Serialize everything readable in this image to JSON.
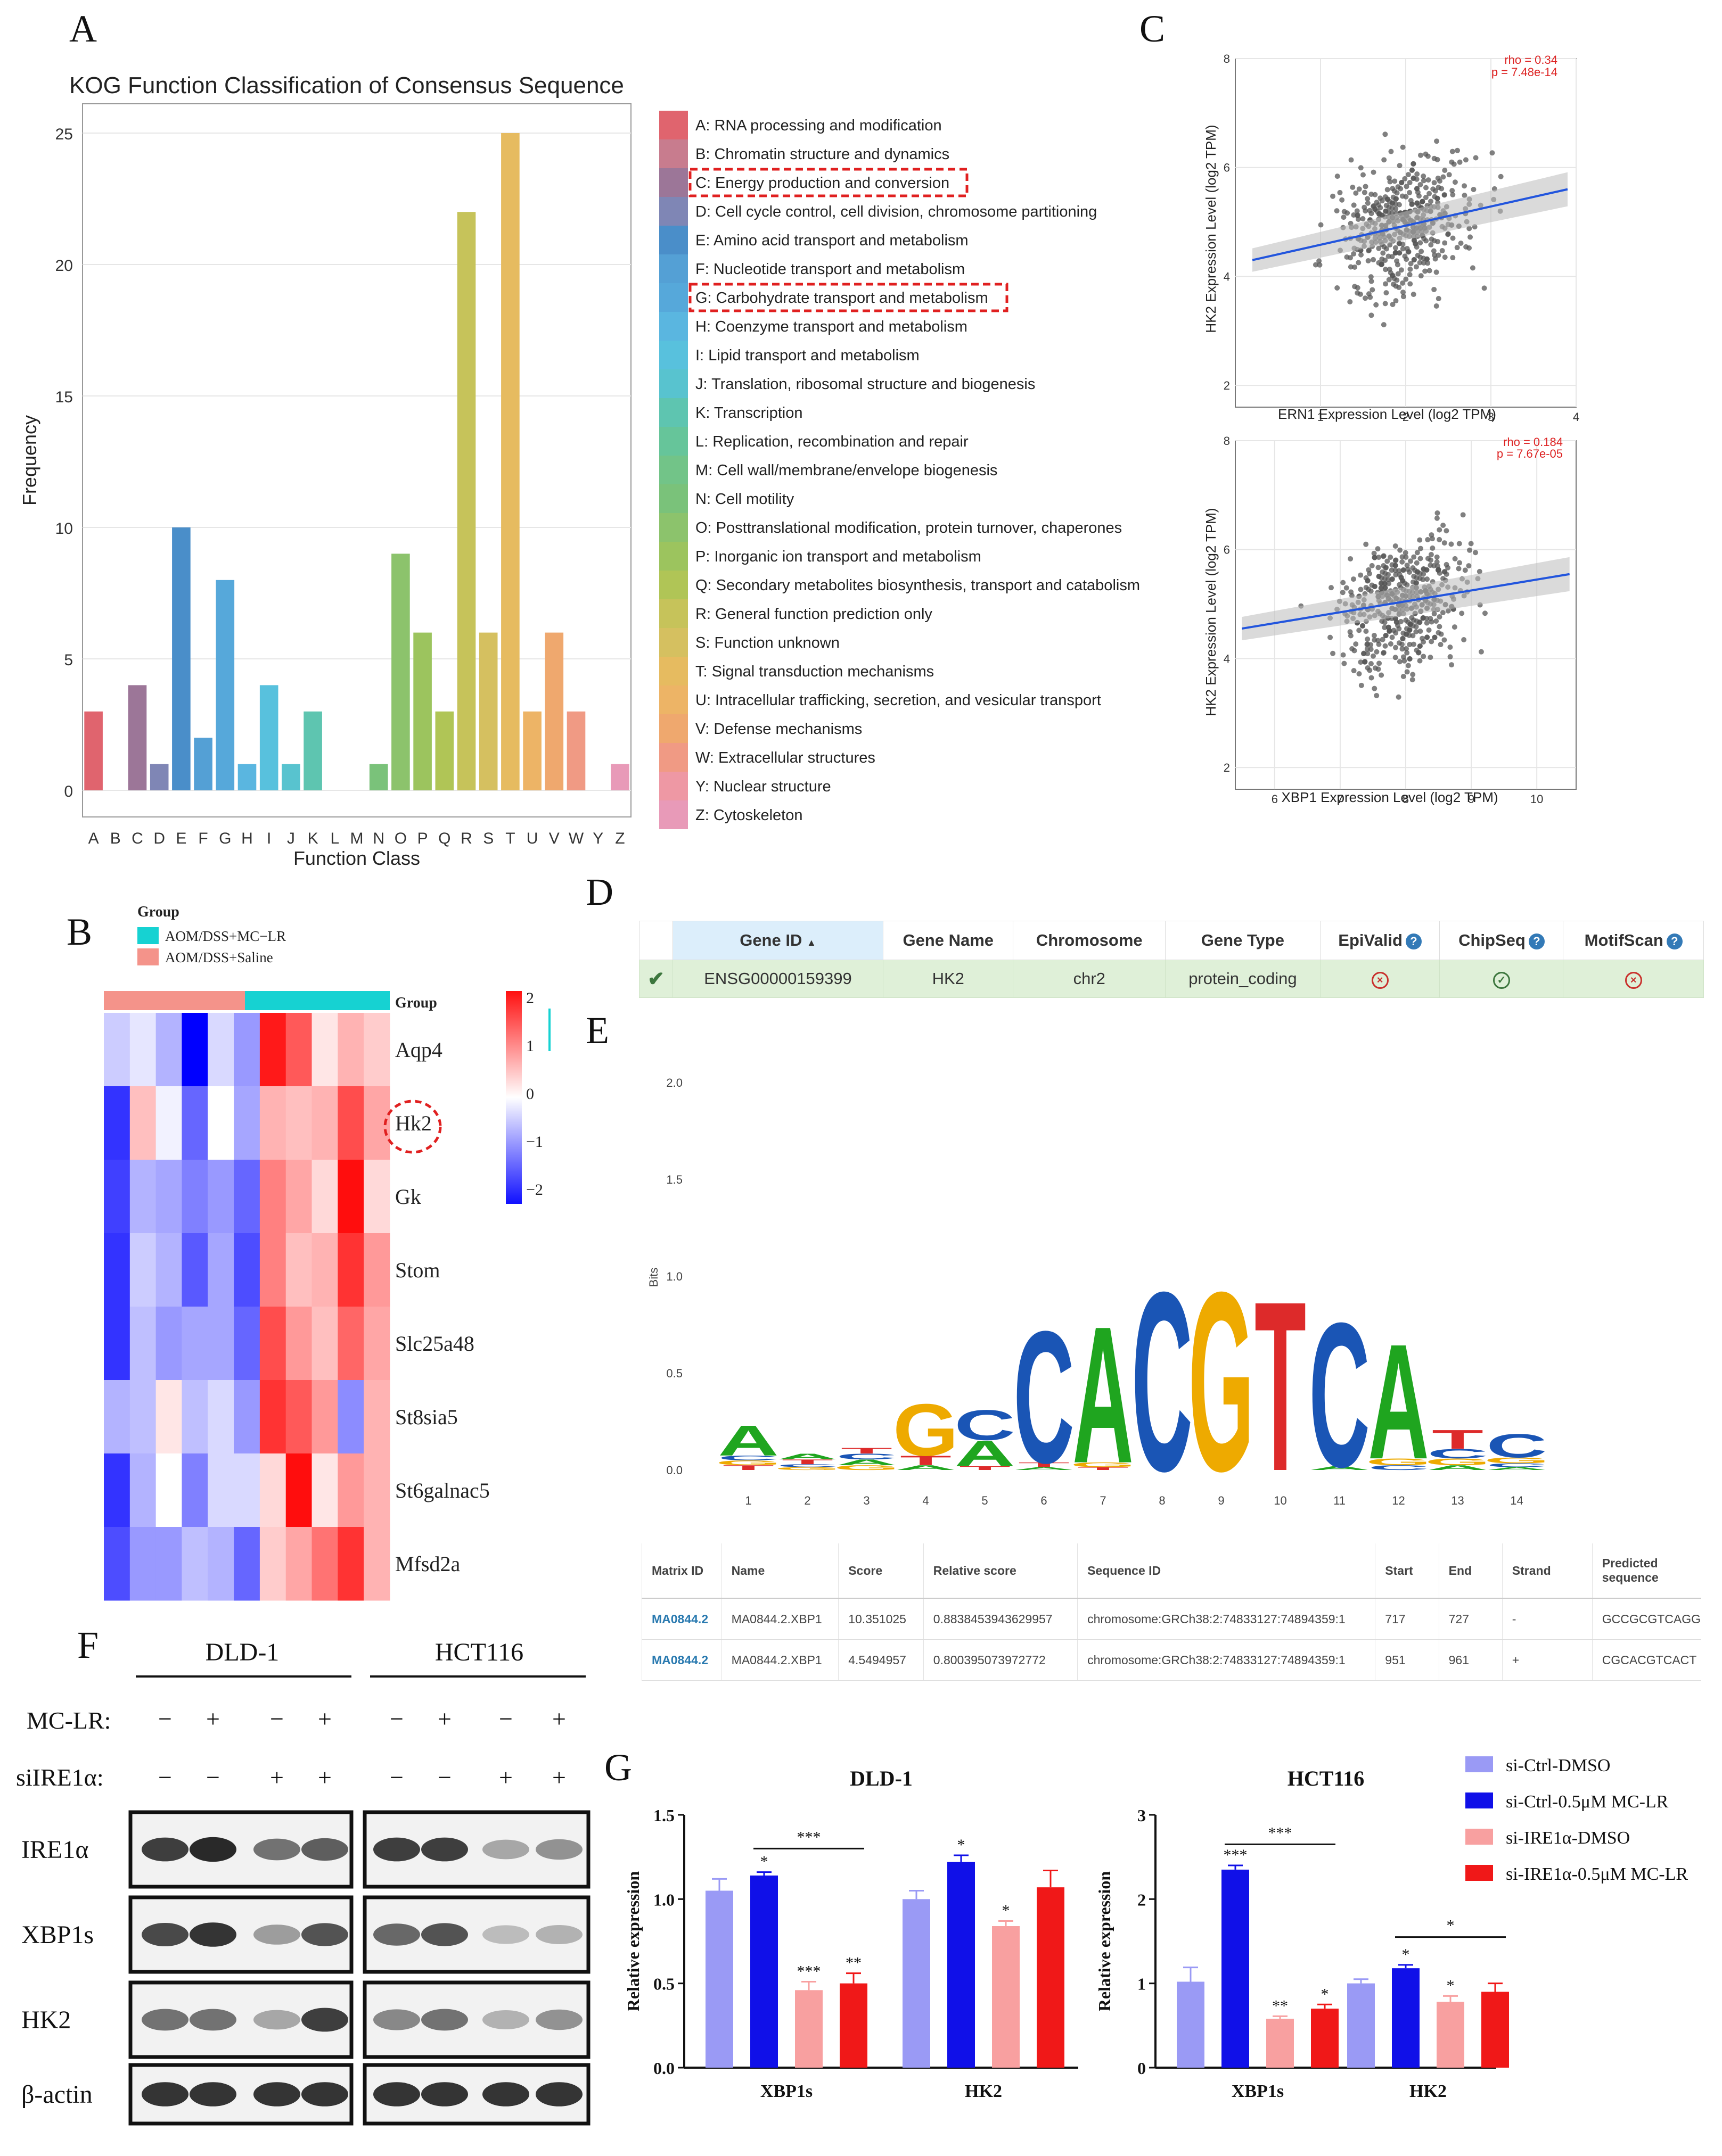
{
  "panels": {
    "A": "A",
    "B": "B",
    "C": "C",
    "D": "D",
    "E": "E",
    "F": "F",
    "G": "G"
  },
  "colors": {
    "red": "#e41a1c",
    "blue": "#1010e8",
    "light_blue": "#9a9af5",
    "pink": "#f8a0a0"
  },
  "panel_a": {
    "legend": [
      {
        "text": "A: RNA processing and modification",
        "color": "#e0646e"
      },
      {
        "text": "B: Chromatin structure and dynamics",
        "color": "#c87c8e"
      },
      {
        "text": "C: Energy production and conversion",
        "color": "#9c7698",
        "highlight": true
      },
      {
        "text": "D: Cell cycle control, cell division, chromosome partitioning",
        "color": "#7f86b5"
      },
      {
        "text": "E: Amino acid transport and metabolism",
        "color": "#4a8ec9"
      },
      {
        "text": "F: Nucleotide transport and metabolism",
        "color": "#54a0d5"
      },
      {
        "text": "G: Carbohydrate transport and metabolism",
        "color": "#56a8da",
        "highlight": true
      },
      {
        "text": "H: Coenzyme transport and metabolism",
        "color": "#5ab6e0"
      },
      {
        "text": "I: Lipid transport and metabolism",
        "color": "#58c1dd"
      },
      {
        "text": "J: Translation, ribosomal structure and biogenesis",
        "color": "#58c3cf"
      },
      {
        "text": "K: Transcription",
        "color": "#5ec5b0"
      },
      {
        "text": "L: Replication, recombination and repair",
        "color": "#66c59a"
      },
      {
        "text": "M: Cell wall/membrane/envelope biogenesis",
        "color": "#72c488"
      },
      {
        "text": "N: Cell motility",
        "color": "#7ac27a"
      },
      {
        "text": "O: Posttranslational modification, protein turnover, chaperones",
        "color": "#8cc36c"
      },
      {
        "text": "P: Inorganic ion transport and metabolism",
        "color": "#9cc45e"
      },
      {
        "text": "Q: Secondary metabolites biosynthesis, transport and catabolism",
        "color": "#b0c556"
      },
      {
        "text": "R: General function prediction only",
        "color": "#c6c35a"
      },
      {
        "text": "S: Function unknown",
        "color": "#d5c060"
      },
      {
        "text": "T: Signal transduction mechanisms",
        "color": "#e6bb60"
      },
      {
        "text": "U: Intracellular trafficking, secretion, and vesicular transport",
        "color": "#edb466"
      },
      {
        "text": "V: Defense mechanisms",
        "color": "#efa86e"
      },
      {
        "text": "W: Extracellular structures",
        "color": "#f09a84"
      },
      {
        "text": "Y: Nuclear structure",
        "color": "#ee98a4"
      },
      {
        "text": "Z: Cytoskeleton",
        "color": "#e89ab8"
      }
    ]
  },
  "panel_b": {
    "group_title": "Group",
    "legend": [
      {
        "text": "AOM/DSS+MC−LR",
        "color": "#16d2d2"
      },
      {
        "text": "AOM/DSS+Saline",
        "color": "#f4938a"
      }
    ],
    "group_label": "Group",
    "genes": [
      "Aqp4",
      "Hk2",
      "Gk",
      "Stom",
      "Slc25a48",
      "St8sia5",
      "St6galnac5",
      "Mfsd2a"
    ],
    "values": [
      [
        -0.4,
        -0.2,
        -0.6,
        -2.0,
        -0.3,
        -0.8,
        1.8,
        1.3,
        0.2,
        0.6,
        0.4
      ],
      [
        -1.6,
        0.5,
        -0.1,
        -1.2,
        0.0,
        -0.7,
        0.6,
        0.5,
        0.6,
        1.4,
        0.7
      ],
      [
        -1.5,
        -0.6,
        -0.7,
        -1.0,
        -0.8,
        -1.2,
        1.0,
        0.7,
        0.3,
        1.9,
        0.3
      ],
      [
        -1.6,
        -0.4,
        -0.6,
        -1.3,
        -0.7,
        -1.4,
        1.0,
        0.5,
        0.6,
        1.6,
        0.8
      ],
      [
        -1.6,
        -0.5,
        -0.8,
        -0.7,
        -0.7,
        -1.2,
        1.4,
        0.8,
        0.5,
        1.2,
        0.7
      ],
      [
        -0.6,
        -0.5,
        0.2,
        -0.5,
        -0.3,
        -0.8,
        1.6,
        1.3,
        0.8,
        -0.9,
        0.6
      ],
      [
        -1.6,
        -0.6,
        0.0,
        -1.0,
        -0.3,
        -0.3,
        0.3,
        1.9,
        0.2,
        0.8,
        0.6
      ],
      [
        -1.4,
        -0.8,
        -0.8,
        -0.5,
        -0.6,
        -1.2,
        0.4,
        0.7,
        1.1,
        1.6,
        0.6
      ]
    ],
    "scale_ticks": [
      "2",
      "1",
      "0",
      "−1",
      "−2"
    ]
  },
  "panel_d": {
    "headers": [
      "Gene ID",
      "Gene Name",
      "Chromosome",
      "Gene Type",
      "EpiValid",
      "ChipSeq",
      "MotifScan"
    ],
    "row": [
      "ENSG00000159399",
      "HK2",
      "chr2",
      "protein_coding"
    ]
  },
  "panel_e_table": {
    "headers": [
      "Matrix ID",
      "Name",
      "Score",
      "Relative score",
      "Sequence ID",
      "Start",
      "End",
      "Strand",
      "Predicted sequence"
    ],
    "rows": [
      [
        "MA0844.2",
        "MA0844.2.XBP1",
        "10.351025",
        "0.8838453943629957",
        "chromosome:GRCh38:2:74833127:74894359:1",
        "717",
        "727",
        "-",
        "GCCGCGTCAGG"
      ],
      [
        "MA0844.2",
        "MA0844.2.XBP1",
        "4.5494957",
        "0.800395073972772",
        "chromosome:GRCh38:2:74833127:74894359:1",
        "951",
        "961",
        "+",
        "CGCACGTCACT"
      ]
    ]
  },
  "panel_f": {
    "cell_lines": [
      "DLD-1",
      "HCT116"
    ],
    "row_labels": [
      "MC-LR:",
      "siIRE1α:"
    ],
    "mc_lr": [
      "−",
      "+",
      "−",
      "+",
      "−",
      "+",
      "−",
      "+"
    ],
    "si_ire": [
      "−",
      "−",
      "+",
      "+",
      "−",
      "−",
      "+",
      "+"
    ],
    "bands": [
      "IRE1α",
      "XBP1s",
      "HK2",
      "β-actin"
    ]
  },
  "chart_data": [
    {
      "type": "bar",
      "title": "KOG Function Classification of Consensus Sequence",
      "xlabel": "Function Class",
      "ylabel": "Frequency",
      "categories": [
        "A",
        "B",
        "C",
        "D",
        "E",
        "F",
        "G",
        "H",
        "I",
        "J",
        "K",
        "L",
        "M",
        "N",
        "O",
        "P",
        "Q",
        "R",
        "S",
        "T",
        "U",
        "V",
        "W",
        "Y",
        "Z"
      ],
      "values": [
        3,
        0,
        4,
        1,
        10,
        2,
        8,
        1,
        4,
        1,
        3,
        0,
        0,
        1,
        9,
        6,
        3,
        22,
        6,
        25,
        3,
        6,
        3,
        0,
        1
      ],
      "ylim": [
        0,
        26
      ],
      "yticks": [
        "0",
        "5",
        "10",
        "15",
        "20",
        "25"
      ]
    },
    {
      "type": "scatter",
      "title": "",
      "xlabel": "ERN1 Expression Level (log2 TPM)",
      "ylabel": "HK2 Expression Level (log2 TPM)",
      "annotation": [
        "rho = 0.34",
        "p = 7.48e-14"
      ],
      "xlim": [
        0,
        4
      ],
      "ylim": [
        1.6,
        8
      ],
      "xticks": [
        "1",
        "2",
        "3",
        "4"
      ],
      "yticks": [
        "2",
        "4",
        "6",
        "8"
      ],
      "fit": {
        "x": [
          0.2,
          3.9
        ],
        "y": [
          4.3,
          5.6
        ]
      },
      "points_note": "~470 samples, centered near ERN1 2.0, HK2 5.0"
    },
    {
      "type": "scatter",
      "title": "",
      "xlabel": "XBP1 Expression Level (log2 TPM)",
      "ylabel": "HK2 Expression Level (log2 TPM)",
      "annotation": [
        "rho = 0.184",
        "p = 7.67e-05"
      ],
      "xlim": [
        5.4,
        10.6
      ],
      "ylim": [
        1.6,
        8
      ],
      "xticks": [
        "6",
        "7",
        "8",
        "9",
        "10"
      ],
      "yticks": [
        "2",
        "4",
        "6",
        "8"
      ],
      "fit": {
        "x": [
          5.5,
          10.5
        ],
        "y": [
          4.55,
          5.55
        ]
      },
      "points_note": "~470 samples, centered near XBP1 8.0, HK2 5.0"
    },
    {
      "type": "bar",
      "title": "DLD-1",
      "ylabel": "Relative expression",
      "categories": [
        "XBP1s",
        "HK2"
      ],
      "series": [
        {
          "name": "si-Ctrl-DMSO",
          "values": [
            1.05,
            1.0
          ],
          "errors": [
            0.07,
            0.05
          ]
        },
        {
          "name": "si-Ctrl-0.5μM MC-LR",
          "values": [
            1.14,
            1.22
          ],
          "errors": [
            0.02,
            0.04
          ]
        },
        {
          "name": "si-IRE1α-DMSO",
          "values": [
            0.46,
            0.84
          ],
          "errors": [
            0.05,
            0.03
          ]
        },
        {
          "name": "si-IRE1α-0.5μM MC-LR",
          "values": [
            0.5,
            1.07
          ],
          "errors": [
            0.06,
            0.1
          ]
        }
      ],
      "significance": [
        [
          "",
          "*",
          "***",
          "**"
        ],
        [
          "",
          "*",
          "*",
          ""
        ]
      ],
      "brackets": [
        "***"
      ],
      "ylim": [
        0,
        1.5
      ],
      "yticks": [
        "0.0",
        "0.5",
        "1.0",
        "1.5"
      ]
    },
    {
      "type": "bar",
      "title": "HCT116",
      "ylabel": "Relative expression",
      "categories": [
        "XBP1s",
        "HK2"
      ],
      "series": [
        {
          "name": "si-Ctrl-DMSO",
          "values": [
            1.02,
            1.0
          ],
          "errors": [
            0.17,
            0.05
          ]
        },
        {
          "name": "si-Ctrl-0.5μM MC-LR",
          "values": [
            2.35,
            1.18
          ],
          "errors": [
            0.05,
            0.04
          ]
        },
        {
          "name": "si-IRE1α-DMSO",
          "values": [
            0.58,
            0.78
          ],
          "errors": [
            0.03,
            0.07
          ]
        },
        {
          "name": "si-IRE1α-0.5μM MC-LR",
          "values": [
            0.7,
            0.9
          ],
          "errors": [
            0.05,
            0.1
          ]
        }
      ],
      "significance": [
        [
          "",
          "***",
          "**",
          "*"
        ],
        [
          "",
          "*",
          "*",
          ""
        ]
      ],
      "brackets": [
        "***",
        "*"
      ],
      "ylim": [
        0,
        3
      ],
      "yticks": [
        "0",
        "1",
        "2",
        "3"
      ]
    }
  ]
}
